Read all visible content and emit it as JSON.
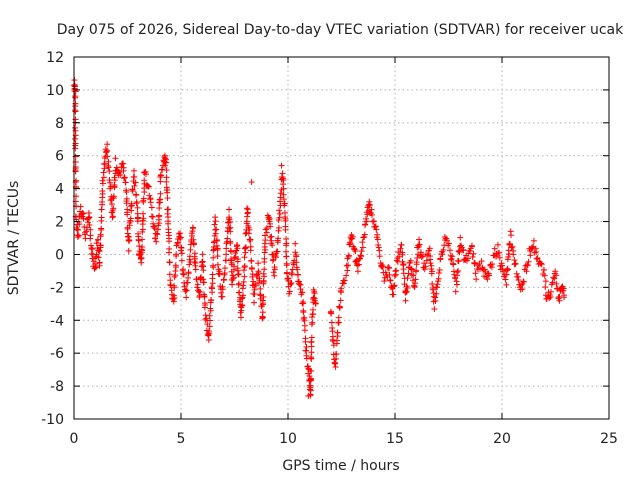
{
  "chart_data": {
    "type": "scatter",
    "title": "Day 075 of 2026, Sidereal Day-to-day VTEC variation (SDTVAR) for receiver ucak",
    "xlabel": "GPS time / hours",
    "ylabel": "SDTVAR / TECUs",
    "xlim": [
      0,
      25
    ],
    "ylim": [
      -10,
      12
    ],
    "xticks": [
      0,
      5,
      10,
      15,
      20,
      25
    ],
    "yticks": [
      -10,
      -8,
      -6,
      -4,
      -2,
      0,
      2,
      4,
      6,
      8,
      10,
      12
    ],
    "grid": true,
    "marker": "+",
    "color": "#ff0000",
    "series": [
      {
        "name": "SDTVAR",
        "trace": [
          [
            0.0,
            10.3
          ],
          [
            0.05,
            10.1
          ],
          [
            0.1,
            2.0
          ],
          [
            0.2,
            1.2
          ],
          [
            0.3,
            2.6
          ],
          [
            0.4,
            2.5
          ],
          [
            0.55,
            1.2
          ],
          [
            0.7,
            2.4
          ],
          [
            0.85,
            -0.2
          ],
          [
            1.0,
            -0.8
          ],
          [
            1.1,
            0.8
          ],
          [
            1.2,
            -0.5
          ],
          [
            1.35,
            4.5
          ],
          [
            1.5,
            6.5
          ],
          [
            1.65,
            4.8
          ],
          [
            1.8,
            2.2
          ],
          [
            1.95,
            5.5
          ],
          [
            2.1,
            4.8
          ],
          [
            2.3,
            5.6
          ],
          [
            2.45,
            3.6
          ],
          [
            2.55,
            0.5
          ],
          [
            2.65,
            2.4
          ],
          [
            2.8,
            4.8
          ],
          [
            2.95,
            3.2
          ],
          [
            3.05,
            0.0
          ],
          [
            3.15,
            -0.5
          ],
          [
            3.3,
            5.0
          ],
          [
            3.5,
            3.8
          ],
          [
            3.65,
            2.4
          ],
          [
            3.8,
            0.8
          ],
          [
            3.95,
            1.5
          ],
          [
            4.05,
            4.6
          ],
          [
            4.2,
            5.8
          ],
          [
            4.3,
            5.5
          ],
          [
            4.4,
            2.0
          ],
          [
            4.5,
            -1.5
          ],
          [
            4.65,
            -2.8
          ],
          [
            4.8,
            0.2
          ],
          [
            4.95,
            1.3
          ],
          [
            5.1,
            -1.2
          ],
          [
            5.25,
            -2.4
          ],
          [
            5.4,
            -0.6
          ],
          [
            5.55,
            1.8
          ],
          [
            5.7,
            -1.5
          ],
          [
            5.85,
            -2.8
          ],
          [
            6.0,
            -0.2
          ],
          [
            6.15,
            -4.0
          ],
          [
            6.3,
            -5.0
          ],
          [
            6.45,
            -2.0
          ],
          [
            6.6,
            2.0
          ],
          [
            6.75,
            -0.6
          ],
          [
            6.9,
            -2.5
          ],
          [
            7.05,
            -1.0
          ],
          [
            7.25,
            2.6
          ],
          [
            7.4,
            -1.8
          ],
          [
            7.6,
            0.8
          ],
          [
            7.8,
            -4.0
          ],
          [
            7.95,
            -1.0
          ],
          [
            8.1,
            2.8
          ],
          [
            8.25,
            0.4
          ],
          [
            8.4,
            -2.6
          ],
          [
            8.6,
            -0.8
          ],
          [
            8.8,
            -3.8
          ],
          [
            8.95,
            1.2
          ],
          [
            9.1,
            2.6
          ],
          [
            9.2,
            1.0
          ],
          [
            9.35,
            -1.0
          ],
          [
            9.5,
            0.5
          ],
          [
            9.65,
            3.5
          ],
          [
            9.75,
            5.0
          ],
          [
            9.85,
            2.8
          ],
          [
            9.95,
            -0.8
          ],
          [
            10.05,
            -2.4
          ],
          [
            10.2,
            -1.0
          ],
          [
            10.35,
            0.4
          ],
          [
            10.5,
            -1.6
          ],
          [
            10.65,
            -2.2
          ],
          [
            10.8,
            -4.8
          ],
          [
            10.9,
            -6.8
          ],
          [
            11.0,
            -7.6
          ],
          [
            11.05,
            -8.6
          ],
          [
            11.1,
            -5.0
          ],
          [
            11.2,
            -2.2
          ],
          [
            11.3,
            -3.0
          ],
          [
            12.0,
            -3.4
          ],
          [
            12.1,
            -5.2
          ],
          [
            12.2,
            -6.8
          ],
          [
            12.3,
            -5.0
          ],
          [
            12.4,
            -3.5
          ],
          [
            12.5,
            -2.0
          ],
          [
            12.75,
            -1.0
          ],
          [
            12.95,
            1.2
          ],
          [
            13.1,
            0.5
          ],
          [
            13.25,
            -1.0
          ],
          [
            13.45,
            0.3
          ],
          [
            13.6,
            1.5
          ],
          [
            13.75,
            3.0
          ],
          [
            13.9,
            2.5
          ],
          [
            14.1,
            1.6
          ],
          [
            14.3,
            0.0
          ],
          [
            14.5,
            -1.5
          ],
          [
            14.7,
            -0.8
          ],
          [
            14.9,
            -2.4
          ],
          [
            15.1,
            -0.5
          ],
          [
            15.3,
            0.6
          ],
          [
            15.5,
            -2.6
          ],
          [
            15.7,
            -0.4
          ],
          [
            15.9,
            -2.0
          ],
          [
            16.1,
            0.8
          ],
          [
            16.35,
            -0.8
          ],
          [
            16.6,
            0.5
          ],
          [
            16.85,
            -3.0
          ],
          [
            17.1,
            -0.6
          ],
          [
            17.35,
            1.0
          ],
          [
            17.6,
            0.2
          ],
          [
            17.85,
            -2.0
          ],
          [
            18.05,
            0.8
          ],
          [
            18.3,
            -0.5
          ],
          [
            18.55,
            0.6
          ],
          [
            18.8,
            -1.2
          ],
          [
            19.05,
            -0.5
          ],
          [
            19.3,
            -1.6
          ],
          [
            19.55,
            -0.4
          ],
          [
            19.8,
            0.5
          ],
          [
            20.0,
            -1.0
          ],
          [
            20.2,
            -1.6
          ],
          [
            20.4,
            1.2
          ],
          [
            20.65,
            -0.8
          ],
          [
            20.9,
            -2.2
          ],
          [
            21.1,
            -1.0
          ],
          [
            21.3,
            0.2
          ],
          [
            21.5,
            0.6
          ],
          [
            21.7,
            -0.6
          ],
          [
            21.95,
            -1.0
          ],
          [
            22.1,
            -2.6
          ],
          [
            22.3,
            -2.2
          ],
          [
            22.5,
            -1.2
          ],
          [
            22.65,
            -2.6
          ],
          [
            22.8,
            -2.0
          ],
          [
            22.9,
            -2.6
          ]
        ],
        "outliers": [
          [
            0.02,
            10.6
          ],
          [
            0.08,
            9.9
          ],
          [
            8.3,
            4.4
          ],
          [
            9.7,
            5.4
          ],
          [
            10.95,
            -8.6
          ],
          [
            13.8,
            3.2
          ],
          [
            4.25,
            6.0
          ],
          [
            1.55,
            6.7
          ],
          [
            6.3,
            -5.2
          ]
        ]
      }
    ]
  }
}
